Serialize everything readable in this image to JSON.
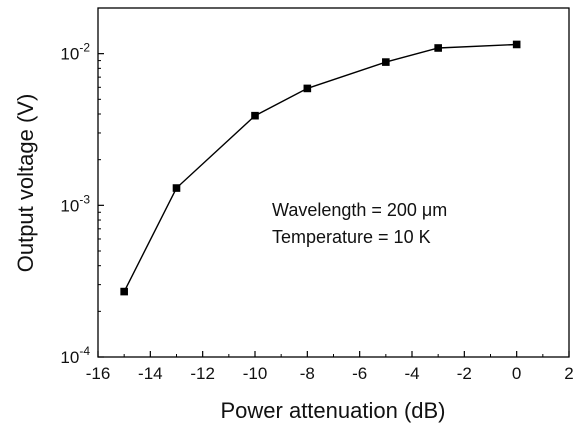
{
  "chart_data": {
    "type": "line",
    "title": "",
    "xlabel": "Power attenuation (dB)",
    "ylabel": "Output voltage (V)",
    "xlim": [
      -16,
      2
    ],
    "ylim": [
      0.0001,
      0.02
    ],
    "yscale": "log",
    "x_ticks": [
      -16,
      -14,
      -12,
      -10,
      -8,
      -6,
      -4,
      -2,
      0,
      2
    ],
    "x_tick_labels": [
      "-16",
      "-14",
      "-12",
      "-10",
      "-8",
      "-6",
      "-4",
      "-2",
      "0",
      "2"
    ],
    "y_ticks": [
      0.0001,
      0.001,
      0.01
    ],
    "y_tick_labels": [
      {
        "base": "10",
        "exp": "-4"
      },
      {
        "base": "10",
        "exp": "-3"
      },
      {
        "base": "10",
        "exp": "-2"
      }
    ],
    "grid": false,
    "legend": "none",
    "series": [
      {
        "marker": "square",
        "color": "#000000",
        "x": [
          -15,
          -13,
          -10,
          -8,
          -5,
          -3,
          0
        ],
        "y": [
          0.00027,
          0.0013,
          0.0039,
          0.0059,
          0.0088,
          0.0109,
          0.0115
        ]
      }
    ],
    "annotations": [
      {
        "text": "Wavelength = 200 μm"
      },
      {
        "text": "Temperature = 10 K"
      }
    ]
  }
}
